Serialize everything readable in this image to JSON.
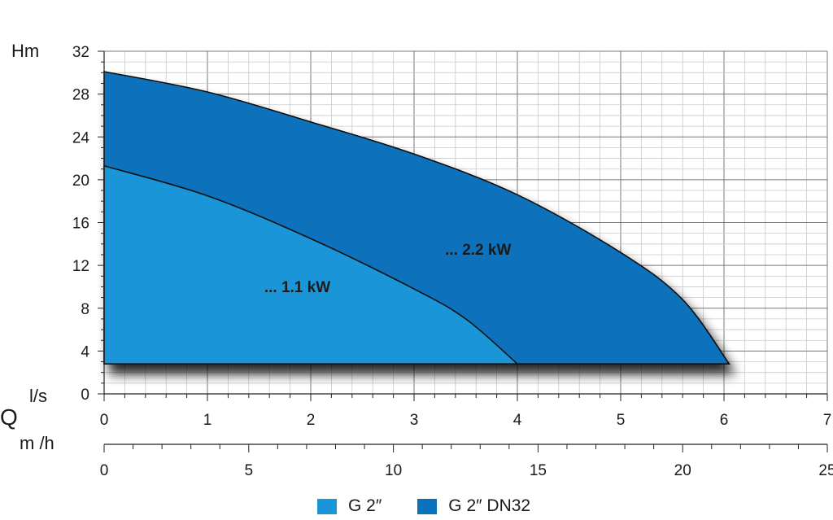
{
  "chart_data": {
    "type": "area",
    "y_axis": {
      "label": "Hm",
      "range": [
        0,
        32
      ],
      "ticks": [
        0,
        4,
        8,
        12,
        16,
        20,
        24,
        28,
        32
      ]
    },
    "x_axis_ls": {
      "label": "l/s",
      "range": [
        0,
        7
      ],
      "ticks": [
        0,
        1,
        2,
        3,
        4,
        5,
        6,
        7
      ]
    },
    "x_axis_m3h": {
      "label": "m /h",
      "range": [
        0,
        25
      ],
      "ticks": [
        0,
        5,
        10,
        15,
        20,
        25
      ]
    },
    "q_label": "Q",
    "grid": true,
    "baseline_y": 2.8,
    "series": [
      {
        "name": "G 2″ DN32",
        "color": "#0a72bb",
        "annotation": "... 2.2 kW",
        "annotation_at": {
          "x": 3.3,
          "y": 13
        },
        "points": [
          [
            0,
            30.1
          ],
          [
            1,
            28.2
          ],
          [
            2,
            25.4
          ],
          [
            3,
            22.4
          ],
          [
            4,
            18.6
          ],
          [
            5,
            13.2
          ],
          [
            5.6,
            8.8
          ],
          [
            6.05,
            2.8
          ]
        ]
      },
      {
        "name": "G 2″",
        "color": "#1a95d7",
        "annotation": "... 1.1 kW",
        "annotation_at": {
          "x": 1.55,
          "y": 9.5
        },
        "points": [
          [
            0,
            21.3
          ],
          [
            1,
            18.5
          ],
          [
            2,
            14.5
          ],
          [
            3,
            9.8
          ],
          [
            3.5,
            7
          ],
          [
            4,
            2.8
          ]
        ]
      }
    ]
  }
}
